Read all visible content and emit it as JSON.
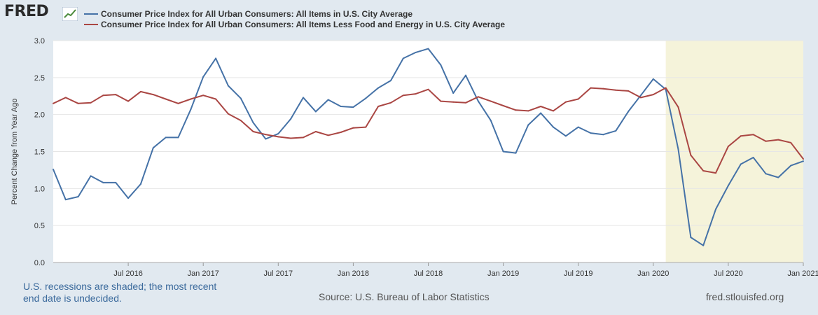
{
  "header": {
    "logo_text": "FRED",
    "logo_icon": "line-chart-icon"
  },
  "legend": [
    {
      "label": "Consumer Price Index for All Urban Consumers: All Items in U.S. City Average",
      "color": "#4572a7"
    },
    {
      "label": "Consumer Price Index for All Urban Consumers: All Items Less Food and Energy in U.S. City Average",
      "color": "#aa4643"
    }
  ],
  "footer": {
    "recession_note_line1": "U.S. recessions are shaded; the most recent",
    "recession_note_line2": "end date is undecided.",
    "source": "Source: U.S. Bureau of Labor Statistics",
    "site": "fred.stlouisfed.org"
  },
  "chart_data": {
    "type": "line",
    "ylabel": "Percent Change from Year Ago",
    "ylim": [
      0,
      3.0
    ],
    "yticks": [
      "0.0",
      "0.5",
      "1.0",
      "1.5",
      "2.0",
      "2.5",
      "3.0"
    ],
    "x_start": "2016-01",
    "x_end": "2021-04",
    "xticks": [
      {
        "label": "Jul 2016",
        "index": 6
      },
      {
        "label": "Jan 2017",
        "index": 12
      },
      {
        "label": "Jul 2017",
        "index": 18
      },
      {
        "label": "Jan 2018",
        "index": 24
      },
      {
        "label": "Jul 2018",
        "index": 30
      },
      {
        "label": "Jan 2019",
        "index": 36
      },
      {
        "label": "Jul 2019",
        "index": 42
      },
      {
        "label": "Jan 2020",
        "index": 48
      },
      {
        "label": "Jul 2020",
        "index": 54
      },
      {
        "label": "Jan 2021",
        "index": 60
      }
    ],
    "recession": {
      "start_index": 49,
      "end_index": 63
    },
    "series": [
      {
        "name": "Consumer Price Index for All Urban Consumers: All Items in U.S. City Average",
        "color": "#4572a7",
        "values": [
          1.26,
          0.85,
          0.89,
          1.17,
          1.08,
          1.08,
          0.87,
          1.06,
          1.55,
          1.69,
          1.69,
          2.07,
          2.51,
          2.76,
          2.39,
          2.22,
          1.89,
          1.67,
          1.74,
          1.94,
          2.23,
          2.04,
          2.2,
          2.11,
          2.1,
          2.22,
          2.36,
          2.46,
          2.76,
          2.84,
          2.89,
          2.67,
          2.29,
          2.53,
          2.18,
          1.92,
          1.5,
          1.48,
          1.86,
          2.02,
          1.83,
          1.71,
          1.83,
          1.75,
          1.73,
          1.78,
          2.04,
          2.26,
          2.48,
          2.34,
          1.53,
          0.34,
          0.23,
          0.72,
          1.04,
          1.33,
          1.42,
          1.2,
          1.15,
          1.31,
          1.37
        ]
      },
      {
        "name": "Consumer Price Index for All Urban Consumers: All Items Less Food and Energy in U.S. City Average",
        "color": "#aa4643",
        "values": [
          2.15,
          2.23,
          2.15,
          2.16,
          2.26,
          2.27,
          2.18,
          2.31,
          2.27,
          2.21,
          2.15,
          2.21,
          2.26,
          2.21,
          2.01,
          1.92,
          1.77,
          1.73,
          1.7,
          1.68,
          1.69,
          1.77,
          1.72,
          1.76,
          1.82,
          1.83,
          2.11,
          2.16,
          2.26,
          2.28,
          2.34,
          2.18,
          2.17,
          2.16,
          2.24,
          2.18,
          2.12,
          2.06,
          2.05,
          2.11,
          2.05,
          2.17,
          2.21,
          2.36,
          2.35,
          2.33,
          2.32,
          2.23,
          2.27,
          2.36,
          2.1,
          1.45,
          1.24,
          1.21,
          1.57,
          1.71,
          1.73,
          1.64,
          1.66,
          1.62,
          1.4
        ]
      }
    ]
  }
}
